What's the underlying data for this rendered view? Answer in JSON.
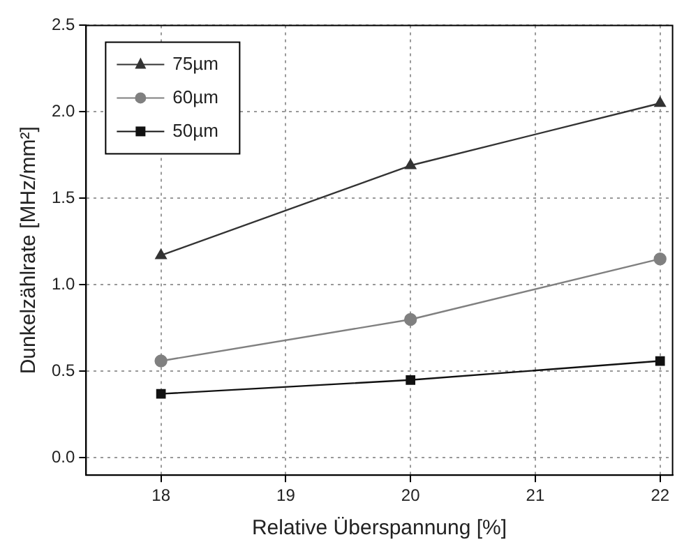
{
  "chart_data": {
    "type": "line",
    "xlabel": "Relative Überspannung [%]",
    "ylabel": "Dunkelzählrate [MHz/mm²]",
    "x": [
      18,
      20,
      22
    ],
    "series": [
      {
        "name": "75µm",
        "color": "#333333",
        "marker": "triangle",
        "values": [
          1.17,
          1.69,
          2.05
        ]
      },
      {
        "name": "60µm",
        "color": "#808080",
        "marker": "circle",
        "values": [
          0.56,
          0.8,
          1.15
        ]
      },
      {
        "name": "50µm",
        "color": "#111111",
        "marker": "square",
        "values": [
          0.37,
          0.45,
          0.56
        ]
      }
    ],
    "xlim": [
      17.4,
      22.1
    ],
    "xticks": [
      18,
      19,
      20,
      21,
      22
    ],
    "ylim": [
      -0.1,
      2.5
    ],
    "yticks": [
      {
        "value": 0,
        "label": "0.0"
      },
      {
        "value": 0.5,
        "label": "0.5"
      },
      {
        "value": 1,
        "label": "1.0"
      },
      {
        "value": 1.5,
        "label": "1.5"
      },
      {
        "value": 2,
        "label": "2.0"
      },
      {
        "value": 2.5,
        "label": "2.5"
      }
    ],
    "grid": true,
    "legend": "top left",
    "line_style": "solid"
  }
}
